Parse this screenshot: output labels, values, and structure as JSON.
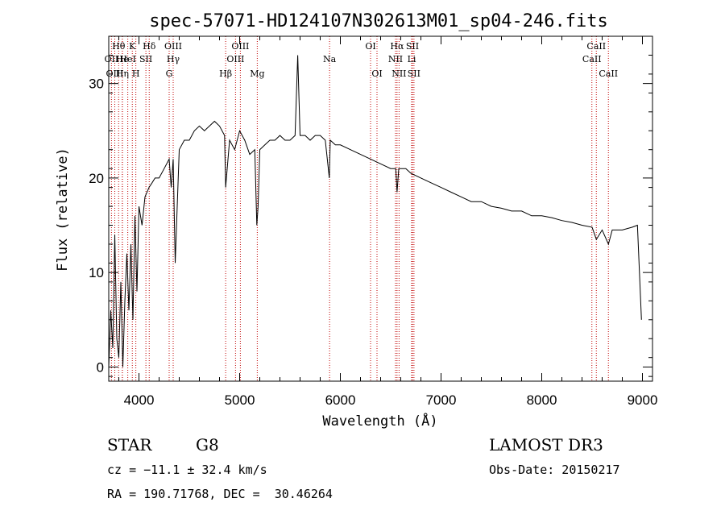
{
  "chart_data": {
    "type": "line",
    "title": "spec-57071-HD124107N302613M01_sp04-246.fits",
    "xlabel": "Wavelength (Å)",
    "ylabel": "Flux (relative)",
    "xlim": [
      3700,
      9100
    ],
    "ylim": [
      -1.5,
      35
    ],
    "x_ticks": [
      4000,
      5000,
      6000,
      7000,
      8000,
      9000
    ],
    "y_ticks": [
      0,
      10,
      20,
      30
    ],
    "x_tick_labels": [
      "4000",
      "5000",
      "6000",
      "7000",
      "8000",
      "9000"
    ],
    "y_tick_labels": [
      "0",
      "10",
      "20",
      "30"
    ],
    "series": [
      {
        "name": "spectrum",
        "x": [
          3700,
          3720,
          3740,
          3760,
          3780,
          3800,
          3820,
          3840,
          3860,
          3880,
          3900,
          3920,
          3940,
          3960,
          3980,
          4000,
          4030,
          4060,
          4100,
          4130,
          4160,
          4200,
          4250,
          4300,
          4320,
          4340,
          4360,
          4400,
          4450,
          4500,
          4550,
          4600,
          4650,
          4700,
          4750,
          4800,
          4850,
          4861,
          4900,
          4950,
          5000,
          5050,
          5100,
          5150,
          5170,
          5183,
          5200,
          5250,
          5300,
          5350,
          5400,
          5450,
          5500,
          5550,
          5577,
          5600,
          5650,
          5700,
          5750,
          5800,
          5850,
          5890,
          5900,
          5950,
          6000,
          6100,
          6200,
          6300,
          6400,
          6500,
          6550,
          6563,
          6580,
          6650,
          6700,
          6800,
          6900,
          7000,
          7100,
          7200,
          7300,
          7400,
          7500,
          7600,
          7700,
          7800,
          7900,
          8000,
          8100,
          8200,
          8300,
          8400,
          8500,
          8542,
          8600,
          8662,
          8700,
          8800,
          8900,
          8950,
          8990
        ],
        "y": [
          0,
          6,
          2,
          14,
          3,
          1,
          9,
          0,
          7,
          12,
          6,
          13,
          5,
          16,
          8,
          17,
          15,
          18,
          19,
          19.5,
          20,
          20,
          21,
          22,
          19,
          22,
          11,
          23,
          24,
          24,
          25,
          25.5,
          25,
          25.5,
          26,
          25.5,
          24.5,
          19,
          24,
          23,
          25,
          24,
          22.5,
          23,
          15,
          17,
          23,
          23.5,
          24,
          24,
          24.5,
          24,
          24,
          24.5,
          33,
          24.5,
          24.5,
          24,
          24.5,
          24.5,
          24,
          20,
          24,
          23.5,
          23.5,
          23,
          22.5,
          22,
          21.5,
          21,
          21,
          18.5,
          21,
          21,
          20.5,
          20,
          19.5,
          19,
          18.5,
          18,
          17.5,
          17.5,
          17,
          16.8,
          16.5,
          16.5,
          16,
          16,
          15.8,
          15.5,
          15.3,
          15,
          14.8,
          13.5,
          14.5,
          13,
          14.5,
          14.5,
          14.8,
          15,
          5
        ]
      }
    ],
    "lines": [
      {
        "name": "Hθ",
        "wavelength": 3798,
        "row": 1
      },
      {
        "name": "OII",
        "wavelength": 3727,
        "row": 2
      },
      {
        "name": "OIII",
        "wavelength": 3760,
        "row": 3
      },
      {
        "name": "He",
        "wavelength": 3835,
        "row": 2
      },
      {
        "name": "Hη",
        "wavelength": 3835,
        "row": 3
      },
      {
        "name": "K",
        "wavelength": 3934,
        "row": 1
      },
      {
        "name": "HeI",
        "wavelength": 3889,
        "row": 2
      },
      {
        "name": "H",
        "wavelength": 3969,
        "row": 3
      },
      {
        "name": "SII",
        "wavelength": 4069,
        "row": 2
      },
      {
        "name": "Hδ",
        "wavelength": 4102,
        "row": 1
      },
      {
        "name": "OIII",
        "wavelength": 4340,
        "row": 1
      },
      {
        "name": "Hγ",
        "wavelength": 4340,
        "row": 2
      },
      {
        "name": "G",
        "wavelength": 4300,
        "row": 3
      },
      {
        "name": "OIII",
        "wavelength": 5007,
        "row": 1
      },
      {
        "name": "OIII",
        "wavelength": 4959,
        "row": 2
      },
      {
        "name": "Hβ",
        "wavelength": 4861,
        "row": 3
      },
      {
        "name": "Mg",
        "wavelength": 5175,
        "row": 3
      },
      {
        "name": "Na",
        "wavelength": 5893,
        "row": 2
      },
      {
        "name": "OI",
        "wavelength": 6300,
        "row": 1
      },
      {
        "name": "OI",
        "wavelength": 6364,
        "row": 3
      },
      {
        "name": "Hα",
        "wavelength": 6563,
        "row": 1
      },
      {
        "name": "SII",
        "wavelength": 6716,
        "row": 1
      },
      {
        "name": "NII",
        "wavelength": 6548,
        "row": 2
      },
      {
        "name": "Li",
        "wavelength": 6708,
        "row": 2
      },
      {
        "name": "NII",
        "wavelength": 6583,
        "row": 3
      },
      {
        "name": "SII",
        "wavelength": 6731,
        "row": 3
      },
      {
        "name": "CaII",
        "wavelength": 8542,
        "row": 1
      },
      {
        "name": "CaII",
        "wavelength": 8498,
        "row": 2
      },
      {
        "name": "CaII",
        "wavelength": 8662,
        "row": 3
      }
    ],
    "colors": {
      "spectrum": "#000000",
      "lines": "#c00000",
      "axes": "#000000"
    }
  },
  "info": {
    "object_class": "STAR",
    "subclass": "G8",
    "survey": "LAMOST DR3",
    "redshift": "cz = −11.1 ± 32.4 km/s",
    "obs_date": "Obs-Date: 20150217",
    "coords": "RA = 190.71768, DEC =  30.46264"
  }
}
